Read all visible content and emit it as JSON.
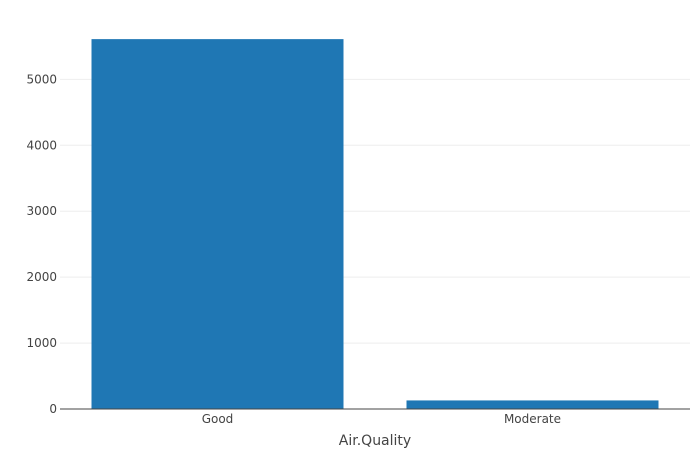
{
  "chart_data": {
    "type": "bar",
    "title": "",
    "xlabel": "Air.Quality",
    "ylabel": "",
    "categories": [
      "Good",
      "Moderate"
    ],
    "values": [
      5610,
      130
    ],
    "ylim": [
      0,
      5900
    ],
    "yticks": [
      0,
      1000,
      2000,
      3000,
      4000,
      5000
    ],
    "ytick_labels": [
      "0",
      "1000",
      "2000",
      "3000",
      "4000",
      "5000"
    ],
    "grid": true,
    "legend": "none",
    "colors": {
      "bar": "#1f77b4",
      "grid": "#eeeeee",
      "axis": "#444444",
      "text": "#444444"
    }
  }
}
